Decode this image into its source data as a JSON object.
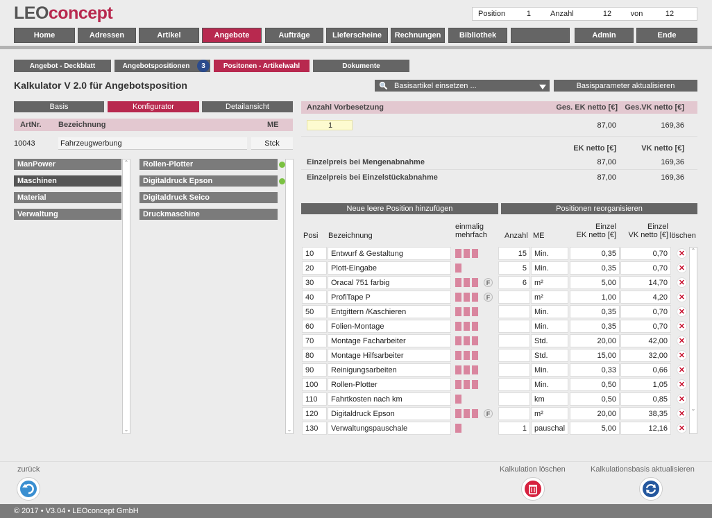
{
  "logo": {
    "part1": "LEO",
    "part2": "concept"
  },
  "position_box": {
    "position_label": "Position",
    "position_value": "1",
    "anzahl_label": "Anzahl",
    "anzahl_value": "12",
    "von_label": "von",
    "von_value": "12"
  },
  "nav": [
    {
      "label": "Home"
    },
    {
      "label": "Adressen"
    },
    {
      "label": "Artikel"
    },
    {
      "label": "Angebote"
    },
    {
      "label": "Aufträge"
    },
    {
      "label": "Lieferscheine"
    },
    {
      "label": "Rechnungen"
    },
    {
      "label": "Bibliothek"
    },
    {
      "label": ""
    },
    {
      "label": "Admin"
    },
    {
      "label": "Ende"
    }
  ],
  "subtabs": [
    {
      "label": "Angebot - Deckblatt"
    },
    {
      "label": "Angebotspositionen"
    },
    {
      "label": "Positonen - Artikelwahl"
    },
    {
      "label": "Dokumente"
    }
  ],
  "badge": "3",
  "page_title": "Kalkulator V 2.0 für Angebotsposition",
  "basisartikel_select": "Basisartikel einsetzen ...",
  "basisparameter_button": "Basisparameter aktualisieren",
  "left_tabs": [
    {
      "label": "Basis"
    },
    {
      "label": "Konfigurator"
    },
    {
      "label": "Detailansicht"
    }
  ],
  "article_header": {
    "artnr": "ArtNr.",
    "bezeichnung": "Bezeichnung",
    "me": "ME"
  },
  "article": {
    "artnr": "10043",
    "bezeichnung": "Fahrzeugwerbung",
    "me": "Stck"
  },
  "categories": [
    {
      "label": "ManPower"
    },
    {
      "label": "Maschinen"
    },
    {
      "label": "Material"
    },
    {
      "label": "Verwaltung"
    }
  ],
  "machines": [
    {
      "label": "Rollen-Plotter"
    },
    {
      "label": "Digitaldruck Epson"
    },
    {
      "label": "Digitaldruck Seico"
    },
    {
      "label": "Druckmaschine"
    }
  ],
  "summary": {
    "anzahl_label": "Anzahl Vorbesetzung",
    "ges_ek_label": "Ges. EK netto [€]",
    "ges_vk_label": "Ges.VK netto [€]",
    "anzahl_value": "1",
    "ges_ek_value": "87,00",
    "ges_vk_value": "169,36",
    "ek_label": "EK netto [€]",
    "vk_label": "VK netto [€]",
    "menge_label": "Einzelpreis bei Mengenabnahme",
    "menge_ek": "87,00",
    "menge_vk": "169,36",
    "einzel_label": "Einzelpreis bei Einzelstückabnahme",
    "einzel_ek": "87,00",
    "einzel_vk": "169,36"
  },
  "add_position_button": "Neue leere Position hinzufügen",
  "reorg_button": "Positionen reorganisieren",
  "table_header": {
    "posi": "Posi",
    "bezeichnung": "Bezeichnung",
    "einmalig": "einmalig",
    "mehrfach": "mehrfach",
    "anzahl": "Anzahl",
    "me": "ME",
    "ek1": "Einzel",
    "ek2": "EK netto [€]",
    "vk1": "Einzel",
    "vk2": "VK netto [€]",
    "loeschen": "löschen"
  },
  "rows": [
    {
      "posi": "10",
      "bez": "Entwurf & Gestaltung",
      "bars": 3,
      "f": "",
      "anzahl": "15",
      "me": "Min.",
      "ek": "0,35",
      "vk": "0,70"
    },
    {
      "posi": "20",
      "bez": "Plott-Eingabe",
      "bars": 1,
      "f": "",
      "anzahl": "5",
      "me": "Min.",
      "ek": "0,35",
      "vk": "0,70"
    },
    {
      "posi": "30",
      "bez": "Oracal 751 farbig",
      "bars": 3,
      "f": "F",
      "anzahl": "6",
      "me": "m²",
      "ek": "5,00",
      "vk": "14,70"
    },
    {
      "posi": "40",
      "bez": "ProfiTape P",
      "bars": 3,
      "f": "F",
      "anzahl": "",
      "me": "m²",
      "ek": "1,00",
      "vk": "4,20"
    },
    {
      "posi": "50",
      "bez": "Entgittern /Kaschieren",
      "bars": 3,
      "f": "",
      "anzahl": "",
      "me": "Min.",
      "ek": "0,35",
      "vk": "0,70"
    },
    {
      "posi": "60",
      "bez": "Folien-Montage",
      "bars": 3,
      "f": "",
      "anzahl": "",
      "me": "Min.",
      "ek": "0,35",
      "vk": "0,70"
    },
    {
      "posi": "70",
      "bez": "Montage Facharbeiter",
      "bars": 3,
      "f": "",
      "anzahl": "",
      "me": "Std.",
      "ek": "20,00",
      "vk": "42,00"
    },
    {
      "posi": "80",
      "bez": "Montage Hilfsarbeiter",
      "bars": 3,
      "f": "",
      "anzahl": "",
      "me": "Std.",
      "ek": "15,00",
      "vk": "32,00"
    },
    {
      "posi": "90",
      "bez": "Reinigungsarbeiten",
      "bars": 3,
      "f": "",
      "anzahl": "",
      "me": "Min.",
      "ek": "0,33",
      "vk": "0,66"
    },
    {
      "posi": "100",
      "bez": "Rollen-Plotter",
      "bars": 3,
      "f": "",
      "anzahl": "",
      "me": "Min.",
      "ek": "0,50",
      "vk": "1,05"
    },
    {
      "posi": "110",
      "bez": "Fahrtkosten nach km",
      "bars": 1,
      "f": "",
      "anzahl": "",
      "me": "km",
      "ek": "0,50",
      "vk": "0,85"
    },
    {
      "posi": "120",
      "bez": "Digitaldruck Epson",
      "bars": 3,
      "f": "F",
      "anzahl": "",
      "me": "m²",
      "ek": "20,00",
      "vk": "38,35"
    },
    {
      "posi": "130",
      "bez": "Verwaltungspauschale",
      "bars": 1,
      "f": "",
      "anzahl": "1",
      "me": "pauschal",
      "ek": "5,00",
      "vk": "12,16"
    }
  ],
  "bottom": {
    "zurueck": "zurück",
    "kalk_loeschen": "Kalkulation löschen",
    "kalk_aktualisieren": "Kalkulationsbasis aktualisieren"
  },
  "footer": "© 2017 • V3.04 • LEOconcept GmbH",
  "colors": {
    "accent": "#b8294f",
    "nav": "#656565",
    "pinkbar": "#d9869f"
  }
}
